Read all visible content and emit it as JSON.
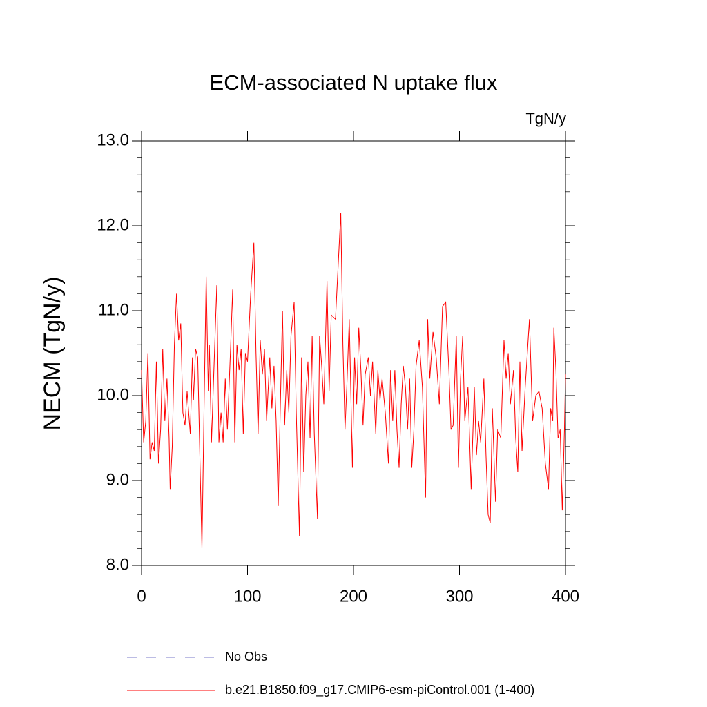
{
  "chart_data": {
    "type": "line",
    "title": "ECM-associated N uptake flux",
    "subtitle": "TgN/y",
    "y_label": "NECM  (TgN/y)",
    "xlim": [
      0,
      400
    ],
    "xticks": [
      0,
      100,
      200,
      300,
      400
    ],
    "ylim": [
      8,
      13
    ],
    "yticks": [
      {
        "value": 8,
        "label": "8.0"
      },
      {
        "value": 9,
        "label": "9.0"
      },
      {
        "value": 10,
        "label": "10.0"
      },
      {
        "value": 11,
        "label": "11.0"
      },
      {
        "value": 12,
        "label": "12.0"
      },
      {
        "value": 13,
        "label": "13.0"
      }
    ],
    "minor_divisions": 5,
    "x": [
      0,
      2,
      4,
      6,
      8,
      10,
      12,
      14,
      16,
      18,
      20,
      22,
      24,
      26,
      27,
      29,
      31,
      33,
      35,
      37,
      39,
      41,
      43,
      46,
      48,
      49,
      51,
      53,
      55,
      57,
      59,
      61,
      63,
      64,
      66,
      68,
      71,
      73,
      75,
      77,
      79,
      81,
      84,
      86,
      88,
      90,
      92,
      94,
      96,
      98,
      100,
      103,
      106,
      108,
      110,
      112,
      114,
      116,
      118,
      121,
      123,
      125,
      127,
      129,
      131,
      133,
      135,
      137,
      139,
      141,
      144,
      146,
      149,
      151,
      153,
      155,
      157,
      159,
      161,
      163,
      166,
      168,
      170,
      172,
      175,
      177,
      179,
      183,
      188,
      190,
      192,
      194,
      196,
      199,
      201,
      203,
      205,
      207,
      209,
      211,
      214,
      216,
      218,
      221,
      223,
      225,
      227,
      230,
      233,
      235,
      237,
      239,
      241,
      243,
      245,
      247,
      249,
      251,
      253,
      255,
      257,
      259,
      262,
      265,
      268,
      270,
      272,
      275,
      278,
      281,
      284,
      287,
      290,
      292,
      294,
      297,
      299,
      301,
      303,
      305,
      308,
      311,
      314,
      316,
      318,
      320,
      323,
      325,
      327,
      329,
      331,
      334,
      336,
      339,
      342,
      344,
      346,
      348,
      351,
      353,
      355,
      357,
      359,
      362,
      366,
      369,
      372,
      375,
      378,
      381,
      384,
      386,
      388,
      389,
      391,
      393,
      395,
      397,
      399,
      400
    ],
    "series": [
      {
        "name": "No Obs",
        "color": "#7a7ac8",
        "dashed": true
      },
      {
        "name": "b.e21.B1850.f09_g17.CMIP6-esm-piControl.001 (1-400)",
        "color": "#ff0000",
        "values": [
          10.3,
          9.45,
          9.7,
          10.5,
          9.25,
          9.45,
          9.35,
          10.4,
          9.2,
          9.6,
          10.55,
          9.7,
          10.2,
          9.5,
          8.9,
          9.4,
          10.6,
          11.2,
          10.65,
          10.85,
          9.8,
          9.65,
          10.05,
          9.55,
          10.45,
          9.95,
          10.55,
          10.45,
          9.3,
          8.2,
          9.85,
          11.4,
          10.05,
          10.6,
          9.45,
          10.2,
          11.3,
          9.45,
          9.8,
          9.45,
          10.2,
          9.6,
          10.55,
          11.25,
          9.45,
          10.6,
          10.3,
          10.55,
          9.55,
          10.5,
          10.4,
          11.2,
          11.8,
          10.5,
          9.55,
          10.65,
          10.25,
          10.55,
          9.7,
          10.45,
          9.85,
          10.35,
          9.7,
          8.7,
          9.9,
          11.0,
          9.65,
          10.3,
          9.8,
          10.7,
          11.1,
          9.8,
          8.35,
          10.45,
          9.1,
          10.0,
          10.4,
          9.5,
          10.7,
          9.55,
          8.55,
          10.7,
          10.35,
          9.9,
          11.35,
          10.05,
          10.95,
          10.9,
          12.15,
          10.6,
          9.6,
          10.2,
          10.9,
          9.15,
          10.45,
          9.9,
          10.8,
          10.3,
          9.65,
          10.25,
          10.45,
          10.0,
          10.4,
          9.55,
          10.3,
          9.95,
          10.2,
          9.8,
          9.2,
          10.3,
          9.7,
          10.3,
          9.6,
          9.15,
          9.9,
          10.35,
          10.1,
          9.6,
          10.2,
          9.15,
          9.6,
          10.35,
          10.65,
          10.1,
          8.8,
          10.9,
          10.2,
          10.75,
          10.45,
          9.9,
          11.05,
          11.1,
          10.3,
          9.6,
          9.65,
          10.7,
          9.15,
          10.2,
          10.7,
          9.7,
          10.1,
          8.9,
          10.1,
          9.3,
          9.7,
          9.45,
          10.2,
          9.3,
          8.6,
          8.5,
          9.85,
          8.75,
          9.6,
          9.5,
          10.65,
          10.2,
          10.5,
          9.9,
          10.3,
          9.5,
          9.1,
          10.4,
          9.35,
          10.1,
          10.9,
          9.7,
          10.0,
          10.05,
          9.85,
          9.2,
          8.9,
          9.85,
          9.7,
          10.8,
          10.3,
          9.5,
          9.6,
          8.65,
          9.6,
          10.25
        ]
      }
    ]
  }
}
